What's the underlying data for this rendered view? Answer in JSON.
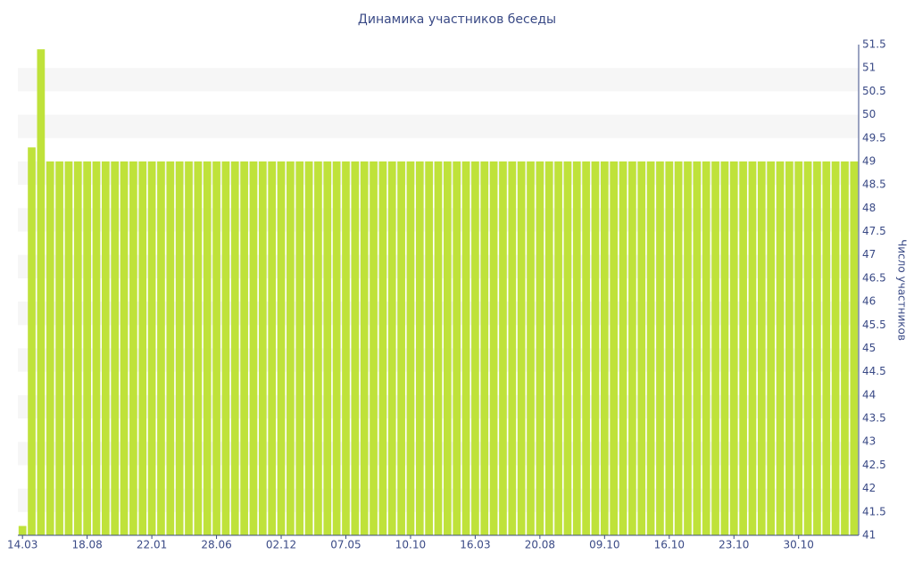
{
  "chart_data": {
    "type": "bar",
    "title": "Динамика участников беседы",
    "y_label": "Число участников",
    "categories": [
      "14.03",
      null,
      null,
      null,
      null,
      null,
      null,
      "18.08",
      null,
      null,
      null,
      null,
      null,
      null,
      "22.01",
      null,
      null,
      null,
      null,
      null,
      null,
      "28.06",
      null,
      null,
      null,
      null,
      null,
      null,
      "02.12",
      null,
      null,
      null,
      null,
      null,
      null,
      "07.05",
      null,
      null,
      null,
      null,
      null,
      null,
      "10.10",
      null,
      null,
      null,
      null,
      null,
      null,
      "16.03",
      null,
      null,
      null,
      null,
      null,
      null,
      "20.08",
      null,
      null,
      null,
      null,
      null,
      null,
      "09.10",
      null,
      null,
      null,
      null,
      null,
      null,
      "16.10",
      null,
      null,
      null,
      null,
      null,
      null,
      "23.10",
      null,
      null,
      null,
      null,
      null,
      null,
      "30.10",
      null,
      null,
      null,
      null,
      null,
      null
    ],
    "values": [
      41.2,
      49.3,
      51.4,
      49,
      49,
      49,
      49,
      49,
      49,
      49,
      49,
      49,
      49,
      49,
      49,
      49,
      49,
      49,
      49,
      49,
      49,
      49,
      49,
      49,
      49,
      49,
      49,
      49,
      49,
      49,
      49,
      49,
      49,
      49,
      49,
      49,
      49,
      49,
      49,
      49,
      49,
      49,
      49,
      49,
      49,
      49,
      49,
      49,
      49,
      49,
      49,
      49,
      49,
      49,
      49,
      49,
      49,
      49,
      49,
      49,
      49,
      49,
      49,
      49,
      49,
      49,
      49,
      49,
      49,
      49,
      49,
      49,
      49,
      49,
      49,
      49,
      49,
      49,
      49,
      49,
      49,
      49,
      49,
      49,
      49,
      49,
      49,
      49,
      49,
      49,
      49
    ],
    "color": "#bfe23a",
    "ylim": [
      41,
      51.5
    ],
    "yticks": [
      41,
      41.5,
      42,
      42.5,
      43,
      43.5,
      44,
      44.5,
      45,
      45.5,
      46,
      46.5,
      47,
      47.5,
      48,
      48.5,
      49,
      49.5,
      50,
      50.5,
      51,
      51.5
    ],
    "grid": true,
    "y_axis_side": "right"
  }
}
